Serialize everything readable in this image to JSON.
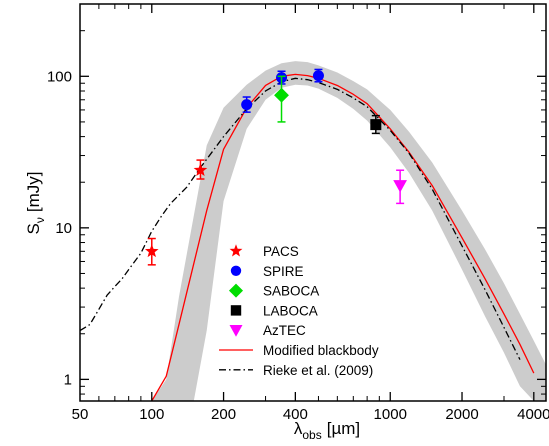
{
  "chart_data": {
    "type": "scatter",
    "xscale": "log",
    "yscale": "log",
    "xlim": [
      50,
      4500
    ],
    "ylim": [
      0.72,
      300
    ],
    "xlabel": {
      "main": "λ",
      "sub": "obs",
      "unit": "[µm]"
    },
    "ylabel": {
      "main": "S",
      "sub": "ν",
      "unit": "[mJy]"
    },
    "x_ticks": [
      {
        "value": 50,
        "label": "50"
      },
      {
        "value": 100,
        "label": "100"
      },
      {
        "value": 200,
        "label": "200"
      },
      {
        "value": 400,
        "label": "400"
      },
      {
        "value": 1000,
        "label": "1000"
      },
      {
        "value": 2000,
        "label": "2000"
      },
      {
        "value": 4000,
        "label": "4000"
      }
    ],
    "y_ticks": [
      {
        "value": 1,
        "label": "1"
      },
      {
        "value": 10,
        "label": "10"
      },
      {
        "value": 100,
        "label": "100"
      }
    ],
    "legend_position": "bottom-center",
    "series": [
      {
        "name": "PACS",
        "marker": "star",
        "color": "#ff0000",
        "points": [
          {
            "x": 100,
            "y": 7.0,
            "ylo": 5.7,
            "yhi": 8.5
          },
          {
            "x": 160,
            "y": 24,
            "ylo": 21,
            "yhi": 28
          }
        ]
      },
      {
        "name": "SPIRE",
        "marker": "circle",
        "color": "#0000ff",
        "points": [
          {
            "x": 250,
            "y": 65,
            "ylo": 58,
            "yhi": 73
          },
          {
            "x": 350,
            "y": 98,
            "ylo": 89,
            "yhi": 108
          },
          {
            "x": 500,
            "y": 101,
            "ylo": 92,
            "yhi": 111
          }
        ]
      },
      {
        "name": "SABOCA",
        "marker": "diamond",
        "color": "#00dd00",
        "points": [
          {
            "x": 350,
            "y": 75,
            "ylo": 50,
            "yhi": 100
          }
        ]
      },
      {
        "name": "LABOCA",
        "marker": "square",
        "color": "#000000",
        "points": [
          {
            "x": 870,
            "y": 48,
            "ylo": 42,
            "yhi": 55
          }
        ]
      },
      {
        "name": "AzTEC",
        "marker": "triangle-down",
        "color": "#ff00ff",
        "points": [
          {
            "x": 1100,
            "y": 19,
            "ylo": 14.5,
            "yhi": 24
          }
        ]
      }
    ],
    "curves": [
      {
        "name": "Modified blackbody",
        "style": "solid",
        "color": "#ff0000",
        "x": [
          100,
          115,
          130,
          150,
          170,
          200,
          250,
          300,
          350,
          400,
          450,
          500,
          600,
          700,
          800,
          1000,
          1200,
          1500,
          2000,
          2500,
          3000,
          3500,
          4000
        ],
        "y": [
          0.72,
          1.05,
          2.3,
          5.8,
          13,
          33,
          62,
          87,
          100,
          103,
          101,
          97,
          87,
          76,
          66,
          45,
          31.5,
          19,
          8.6,
          4.6,
          2.7,
          1.7,
          1.1
        ]
      },
      {
        "name": "Rieke et al. (2009)",
        "style": "dashdot",
        "color": "#000000",
        "x": [
          50,
          55,
          60,
          65,
          70,
          75,
          80,
          90,
          100,
          110,
          120,
          140,
          160,
          180,
          200,
          250,
          300,
          350,
          400,
          450,
          500,
          600,
          700,
          800,
          1000,
          1200,
          1500,
          2000,
          2500,
          3000,
          3500
        ],
        "y": [
          2.1,
          2.3,
          2.9,
          3.6,
          4.1,
          4.6,
          5.3,
          6.8,
          9.5,
          12,
          14.5,
          18.5,
          25,
          32,
          40,
          61,
          80,
          92,
          97,
          95,
          91,
          82,
          72,
          63,
          44,
          31,
          18,
          7.6,
          3.9,
          2.2,
          1.35
        ]
      }
    ],
    "band": {
      "color": "#cccccc",
      "x": [
        100,
        115,
        130,
        150,
        170,
        200,
        250,
        300,
        350,
        400,
        450,
        500,
        600,
        700,
        800,
        1000,
        1200,
        1500,
        2000,
        2500,
        3000,
        3500,
        4000,
        4500
      ],
      "ylo": [
        0.72,
        0.72,
        0.72,
        0.72,
        2.1,
        15,
        45,
        70,
        84,
        88,
        87,
        83,
        72,
        61,
        51,
        34,
        23,
        13,
        5.3,
        2.6,
        1.5,
        0.9,
        0.72,
        0.72
      ],
      "yhi": [
        0.72,
        1.0,
        3.5,
        12,
        35,
        62,
        88,
        109,
        122,
        126,
        124,
        118,
        106,
        93,
        82,
        60,
        43,
        27,
        13,
        7.2,
        4.3,
        2.7,
        1.8,
        1.25
      ]
    },
    "legend": [
      {
        "label": "PACS",
        "kind": "star",
        "color": "#ff0000"
      },
      {
        "label": "SPIRE",
        "kind": "circle",
        "color": "#0000ff"
      },
      {
        "label": "SABOCA",
        "kind": "diamond",
        "color": "#00dd00"
      },
      {
        "label": "LABOCA",
        "kind": "square",
        "color": "#000000"
      },
      {
        "label": "AzTEC",
        "kind": "triangle-down",
        "color": "#ff00ff"
      },
      {
        "label": "Modified blackbody",
        "kind": "line-solid",
        "color": "#ff0000"
      },
      {
        "label": "Rieke et al. (2009)",
        "kind": "line-dashdot",
        "color": "#000000"
      }
    ]
  }
}
